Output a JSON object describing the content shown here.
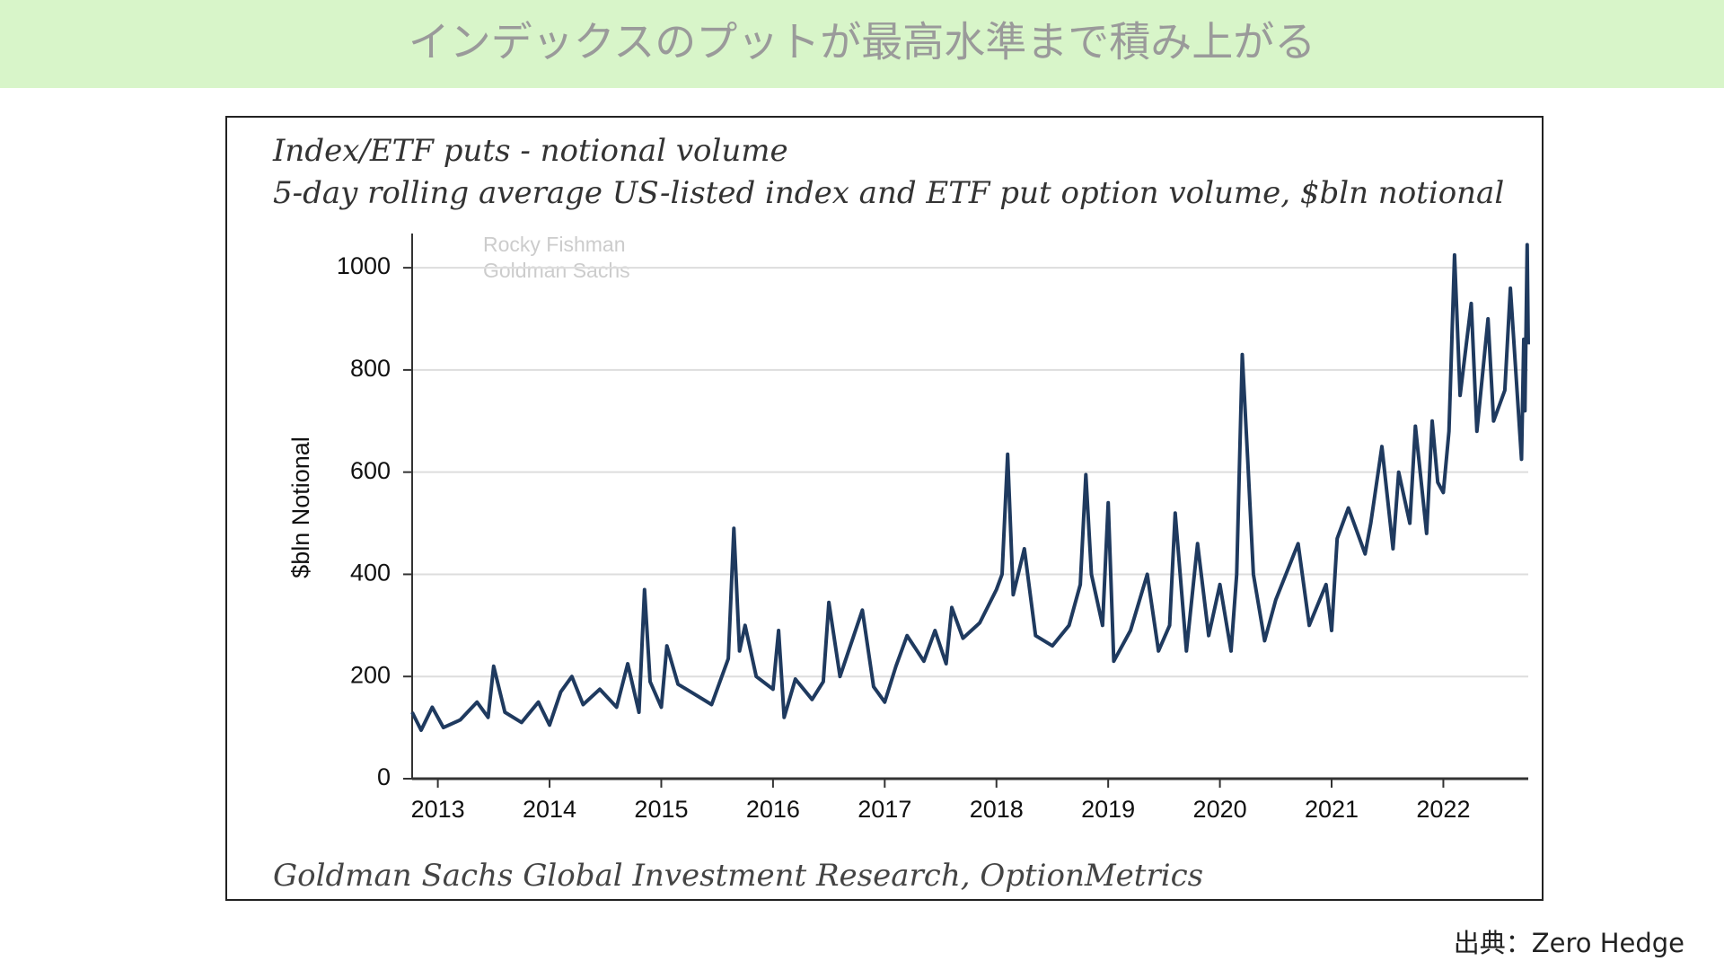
{
  "header": {
    "title": "インデックスのプットが最高水準まで積み上がる"
  },
  "chart_data": {
    "type": "line",
    "title": "Index/ETF puts - notional volume",
    "subtitle": "5-day rolling average US-listed index and ETF put option volume, $bln notional",
    "ylabel": "$bln Notional",
    "watermark": [
      "Rocky Fishman",
      "Goldman Sachs"
    ],
    "source": "Goldman Sachs Global Investment Research, OptionMetrics",
    "color": "#1f3a5f",
    "x": [
      2012.77,
      2012.85,
      2012.95,
      2013.05,
      2013.2,
      2013.35,
      2013.45,
      2013.5,
      2013.6,
      2013.75,
      2013.9,
      2014.0,
      2014.1,
      2014.2,
      2014.3,
      2014.45,
      2014.6,
      2014.7,
      2014.8,
      2014.85,
      2014.9,
      2015.0,
      2015.05,
      2015.15,
      2015.3,
      2015.45,
      2015.6,
      2015.65,
      2015.7,
      2015.75,
      2015.85,
      2016.0,
      2016.05,
      2016.1,
      2016.2,
      2016.35,
      2016.45,
      2016.5,
      2016.6,
      2016.8,
      2016.9,
      2017.0,
      2017.1,
      2017.2,
      2017.35,
      2017.45,
      2017.55,
      2017.6,
      2017.7,
      2017.85,
      2018.0,
      2018.05,
      2018.1,
      2018.15,
      2018.25,
      2018.35,
      2018.5,
      2018.65,
      2018.75,
      2018.8,
      2018.85,
      2018.95,
      2019.0,
      2019.05,
      2019.2,
      2019.35,
      2019.45,
      2019.55,
      2019.6,
      2019.7,
      2019.8,
      2019.9,
      2020.0,
      2020.1,
      2020.15,
      2020.2,
      2020.25,
      2020.3,
      2020.4,
      2020.5,
      2020.7,
      2020.8,
      2020.95,
      2021.0,
      2021.05,
      2021.15,
      2021.3,
      2021.35,
      2021.45,
      2021.55,
      2021.6,
      2021.7,
      2021.75,
      2021.85,
      2021.9,
      2021.95,
      2022.0,
      2022.05,
      2022.1,
      2022.15,
      2022.25,
      2022.3,
      2022.4,
      2022.45,
      2022.55,
      2022.6,
      2022.7,
      2022.72,
      2022.73,
      2022.75,
      2022.76
    ],
    "values": [
      130,
      95,
      140,
      100,
      115,
      150,
      120,
      220,
      130,
      110,
      150,
      105,
      170,
      200,
      145,
      175,
      140,
      225,
      130,
      370,
      190,
      140,
      260,
      185,
      165,
      145,
      235,
      490,
      250,
      300,
      200,
      175,
      290,
      120,
      195,
      155,
      190,
      345,
      200,
      330,
      180,
      150,
      220,
      280,
      230,
      290,
      225,
      335,
      275,
      305,
      370,
      400,
      635,
      360,
      450,
      280,
      260,
      300,
      380,
      595,
      400,
      300,
      540,
      230,
      290,
      400,
      250,
      300,
      520,
      250,
      460,
      280,
      380,
      250,
      400,
      830,
      620,
      400,
      270,
      350,
      460,
      300,
      380,
      290,
      470,
      530,
      440,
      500,
      650,
      450,
      600,
      500,
      690,
      480,
      700,
      580,
      560,
      680,
      1025,
      750,
      930,
      680,
      900,
      700,
      760,
      960,
      625,
      860,
      720,
      1045,
      850
    ],
    "xlim": [
      2012.77,
      2022.76
    ],
    "xticks": [
      2013,
      2014,
      2015,
      2016,
      2017,
      2018,
      2019,
      2020,
      2021,
      2022
    ],
    "ylim": [
      0,
      1067
    ],
    "yticks": [
      0,
      200,
      400,
      600,
      800,
      1000
    ],
    "grid": true
  },
  "footer": {
    "credit": "出典：Zero Hedge"
  }
}
